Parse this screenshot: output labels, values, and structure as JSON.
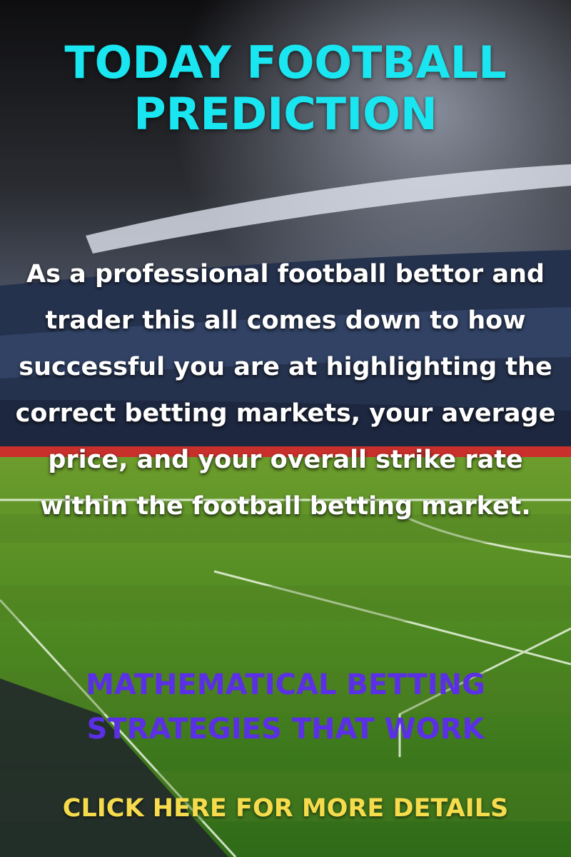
{
  "poster": {
    "title": "TODAY FOOTBALL PREDICTION",
    "body": "As a professional football bettor and trader this all comes down to how successful you are at highlighting the correct betting markets, your average price, and your overall strike rate within the football betting market.",
    "subheading": "MATHEMATICAL BETTING STRATEGIES THAT WORK",
    "cta": "CLICK HERE FOR MORE DETAILS"
  }
}
